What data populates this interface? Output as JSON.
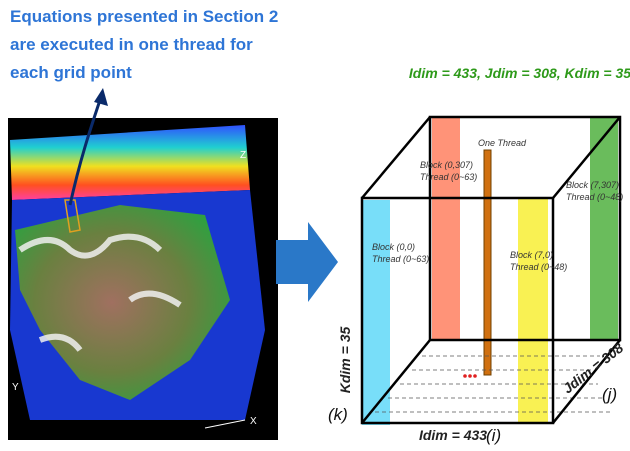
{
  "callout": {
    "lines": [
      "Equations presented in Section 2",
      "are executed in one thread for",
      "each grid point"
    ]
  },
  "left_image": {
    "axis_labels": [
      "X",
      "Y",
      "Z"
    ]
  },
  "right_diagram": {
    "title": "Idim = 433, Jdim = 308, Kdim = 35",
    "one_thread": "One Thread",
    "blocks": [
      {
        "block": "Block (0,0)",
        "thread": "Thread (0~63)"
      },
      {
        "block": "Block (0,307)",
        "thread": "Thread (0~63)"
      },
      {
        "block": "Block (7,0)",
        "thread": "Thread (0~48)"
      },
      {
        "block": "Block (7,307)",
        "thread": "Thread (0~48)"
      }
    ],
    "kdim": "Kdim = 35",
    "jdim": "Jdim = 308",
    "idim": "Idim = 433",
    "k": "(k)",
    "i": "(i)",
    "j": "(j)"
  }
}
